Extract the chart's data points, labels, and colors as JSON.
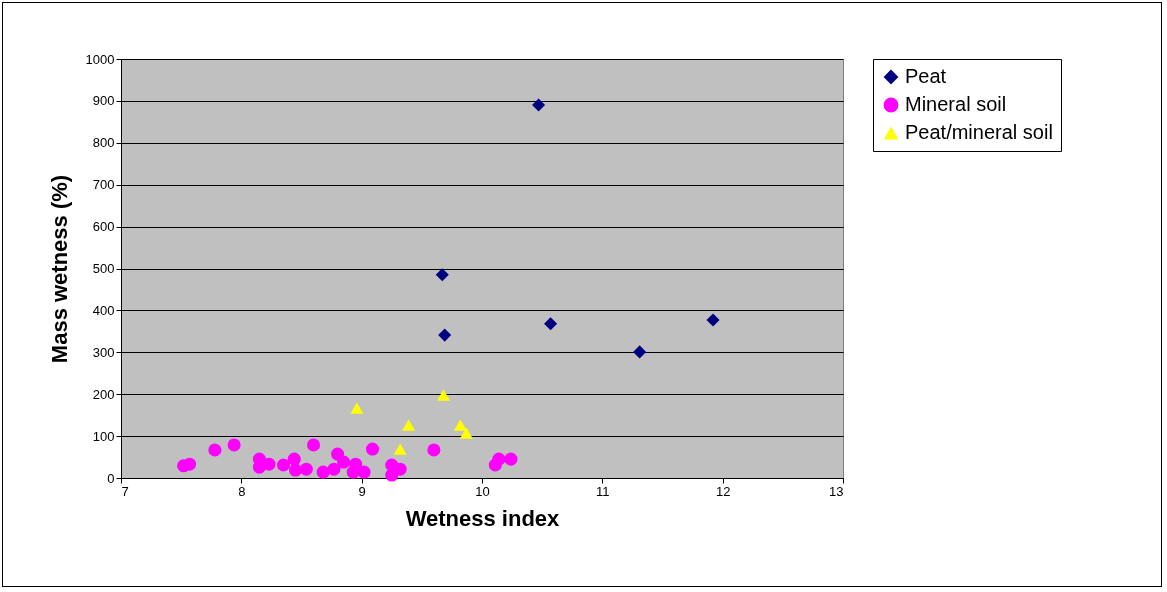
{
  "chart_data": {
    "type": "scatter",
    "xlabel": "Wetness index",
    "ylabel": "Mass wetness (%)",
    "xlim": [
      7,
      13
    ],
    "xticks": [
      7,
      8,
      9,
      10,
      11,
      12,
      13
    ],
    "ylim": [
      0,
      1000
    ],
    "yticks": [
      0,
      100,
      200,
      300,
      400,
      500,
      600,
      700,
      800,
      900,
      1000
    ],
    "grid": "y",
    "legend": "right",
    "series": [
      {
        "name": "Peat",
        "color": "#000080",
        "marker": "diamond",
        "x": [
          10.47,
          9.67,
          9.69,
          10.57,
          11.31,
          11.92
        ],
        "values": [
          890,
          485,
          341,
          368,
          301,
          377
        ]
      },
      {
        "name": "Mineral soil",
        "color": "#ff00ff",
        "marker": "circle",
        "x": [
          7.52,
          7.57,
          7.78,
          7.94,
          8.15,
          8.15,
          8.23,
          8.35,
          8.44,
          8.45,
          8.54,
          8.6,
          8.68,
          8.77,
          8.8,
          8.85,
          8.93,
          8.95,
          9.02,
          9.09,
          9.25,
          9.25,
          9.32,
          9.6,
          10.11,
          10.14,
          10.24
        ],
        "values": [
          29,
          33,
          67,
          79,
          45,
          26,
          33,
          31,
          45,
          19,
          21,
          79,
          14,
          21,
          57,
          38,
          14,
          33,
          14,
          69,
          7,
          31,
          21,
          67,
          31,
          45,
          45
        ]
      },
      {
        "name": "Peat/mineral soil",
        "color": "#ffff00",
        "marker": "triangle",
        "x": [
          8.96,
          9.68,
          9.39,
          9.32,
          9.82,
          9.87
        ],
        "values": [
          167,
          198,
          126,
          69,
          126,
          107
        ]
      }
    ]
  }
}
